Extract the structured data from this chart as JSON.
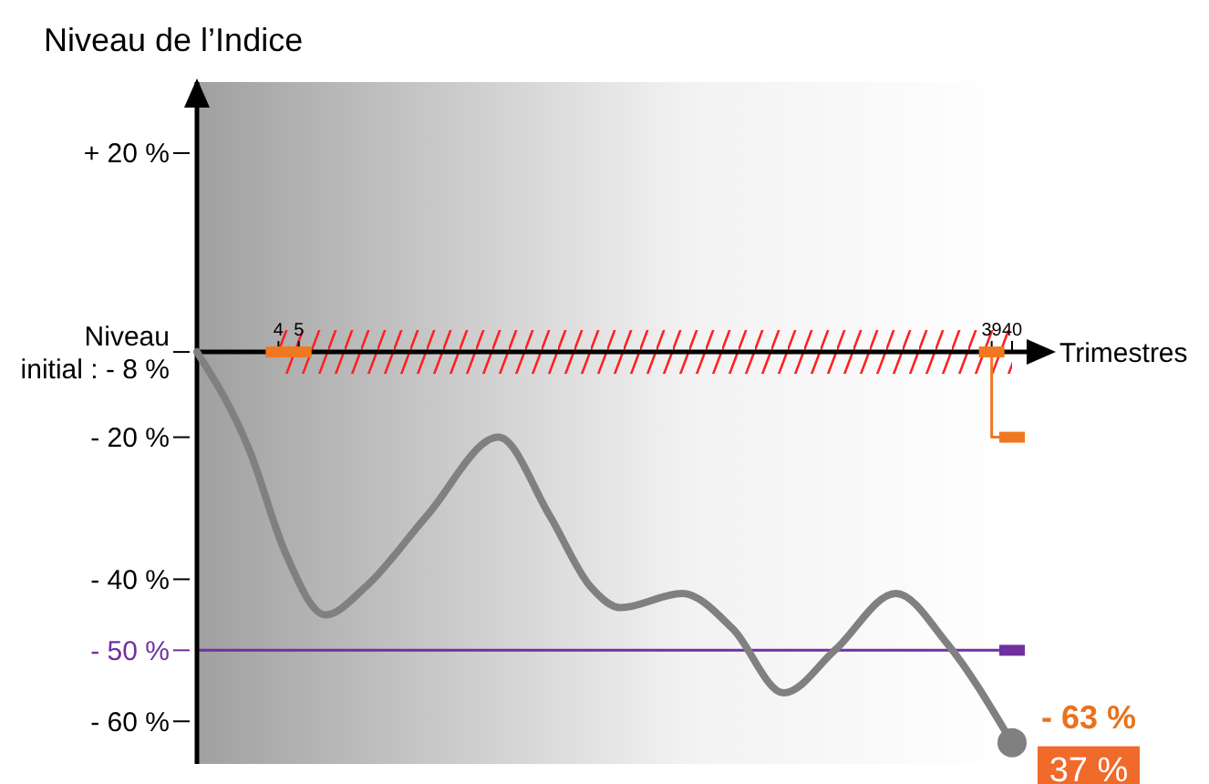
{
  "chart_data": {
    "type": "line",
    "ylabel": "Niveau de l’Indice",
    "xlabel": "Trimestres",
    "xlim": [
      0,
      40
    ],
    "xticks": [
      4,
      5,
      39,
      40
    ],
    "ylim": [
      -66,
      30
    ],
    "yticks": [
      {
        "value": 20,
        "label": "+ 20 %"
      },
      {
        "value": -8,
        "label": "Niveau\ninitial : - 8 %"
      },
      {
        "value": -20,
        "label": "- 20 %"
      },
      {
        "value": -40,
        "label": "- 40 %"
      },
      {
        "value": -60,
        "label": "- 60 %"
      }
    ],
    "series": [
      {
        "color": "#808080",
        "marker": "none",
        "x": [
          0,
          2.6,
          4.3,
          6.3,
          8.3,
          11.3,
          14.8,
          17.3,
          19.3,
          20.8,
          23.8,
          26.3,
          28.8,
          31.3,
          34.3,
          36.8,
          40
        ],
        "values": [
          -8,
          -22,
          -36,
          -45,
          -41,
          -31,
          -20,
          -31,
          -41,
          -44,
          -42,
          -47,
          -56,
          -50,
          -42,
          -49,
          -63
        ]
      },
      {
        "type": "scatter",
        "color": "#808080",
        "marker": "circle",
        "x": [
          40
        ],
        "values": [
          -63
        ]
      },
      {
        "type": "line",
        "color": "#f07820",
        "marker": "none",
        "x": [
          39,
          39,
          40
        ],
        "values": [
          -8,
          -20,
          -20
        ]
      },
      {
        "type": "scatter",
        "color": "#f07820",
        "marker": "square",
        "x": [
          4,
          5,
          39,
          40
        ],
        "values": [
          -8,
          -8,
          -8,
          -20
        ]
      },
      {
        "type": "scatter",
        "color": "#7030a0",
        "marker": "square",
        "x": [
          40
        ],
        "values": [
          -50
        ]
      }
    ],
    "ref_lines": [
      {
        "axis": "y",
        "value": -50,
        "label": "- 50 %",
        "color": "#7030a0"
      }
    ],
    "bands": [
      {
        "axis": "x",
        "from": 4,
        "to": 40,
        "color": "#ff2020"
      }
    ],
    "annotations": [
      {
        "text": "- 63 %",
        "x": 40,
        "y": -63
      },
      {
        "text": "37 %",
        "x": 40,
        "y": -63
      }
    ]
  }
}
